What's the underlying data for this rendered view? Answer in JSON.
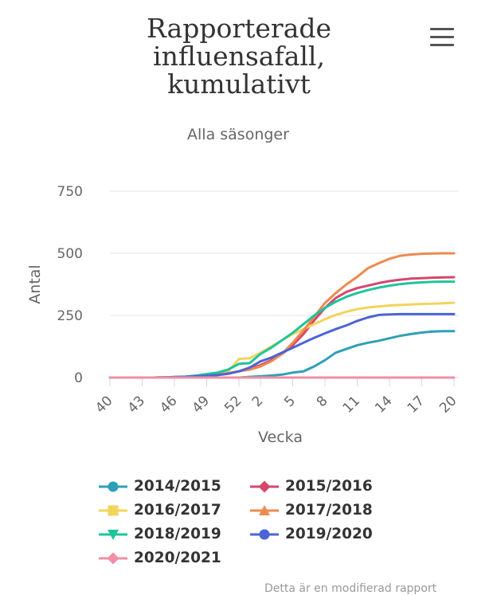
{
  "header": {
    "title_lines": [
      "Rapporterade",
      "influensafall,",
      "kumulativt"
    ],
    "subtitle": "Alla säsonger",
    "menu_icon": "hamburger-menu-icon"
  },
  "chart_data": {
    "type": "line",
    "title": "Rapporterade influensafall, kumulativt",
    "subtitle": "Alla säsonger",
    "xlabel": "Vecka",
    "ylabel": "Antal",
    "ylim": [
      0,
      750
    ],
    "yticks": [
      0,
      250,
      500,
      750
    ],
    "xtick_labels": [
      "40",
      "43",
      "46",
      "49",
      "52",
      "2",
      "5",
      "8",
      "11",
      "14",
      "17",
      "20"
    ],
    "categories": [
      "40",
      "41",
      "42",
      "43",
      "44",
      "45",
      "46",
      "47",
      "48",
      "49",
      "50",
      "51",
      "52",
      "1",
      "2",
      "3",
      "4",
      "5",
      "6",
      "7",
      "8",
      "9",
      "10",
      "11",
      "12",
      "13",
      "14",
      "15",
      "16",
      "17",
      "18",
      "19",
      "20"
    ],
    "grid": true,
    "legend_position": "bottom",
    "series": [
      {
        "name": "2014/2015",
        "color": "#2e9fb8",
        "marker": "circle",
        "values": [
          0,
          0,
          0,
          0,
          0,
          0,
          0,
          0,
          0,
          0,
          0,
          0,
          0,
          3,
          5,
          8,
          12,
          20,
          25,
          45,
          70,
          100,
          115,
          130,
          140,
          148,
          158,
          168,
          175,
          181,
          185,
          187,
          187
        ]
      },
      {
        "name": "2015/2016",
        "color": "#d6476b",
        "marker": "diamond",
        "values": [
          0,
          0,
          0,
          0,
          0,
          1,
          2,
          3,
          5,
          8,
          12,
          18,
          25,
          35,
          50,
          70,
          95,
          130,
          175,
          230,
          280,
          320,
          345,
          360,
          370,
          380,
          388,
          394,
          398,
          400,
          402,
          403,
          404
        ]
      },
      {
        "name": "2016/2017",
        "color": "#f2d45c",
        "marker": "square",
        "values": [
          0,
          0,
          0,
          0,
          0,
          1,
          2,
          3,
          5,
          8,
          12,
          25,
          75,
          78,
          100,
          125,
          150,
          175,
          195,
          215,
          235,
          252,
          265,
          275,
          282,
          286,
          290,
          292,
          294,
          296,
          297,
          299,
          301
        ]
      },
      {
        "name": "2017/2018",
        "color": "#ed8a4f",
        "marker": "triangle-up",
        "values": [
          0,
          0,
          0,
          0,
          0,
          1,
          2,
          3,
          5,
          8,
          12,
          18,
          25,
          32,
          45,
          65,
          95,
          140,
          190,
          245,
          300,
          340,
          375,
          405,
          440,
          460,
          478,
          490,
          495,
          498,
          499,
          500,
          500
        ]
      },
      {
        "name": "2018/2019",
        "color": "#1fc49c",
        "marker": "triangle-down",
        "values": [
          0,
          0,
          0,
          0,
          0,
          1,
          2,
          4,
          8,
          14,
          20,
          32,
          55,
          58,
          95,
          120,
          150,
          180,
          215,
          250,
          280,
          305,
          325,
          340,
          352,
          362,
          370,
          376,
          380,
          383,
          385,
          386,
          386
        ]
      },
      {
        "name": "2019/2020",
        "color": "#4b64d6",
        "marker": "circle",
        "values": [
          0,
          0,
          0,
          0,
          0,
          1,
          2,
          3,
          5,
          7,
          10,
          15,
          25,
          40,
          65,
          80,
          100,
          120,
          140,
          160,
          178,
          195,
          210,
          228,
          242,
          252,
          254,
          255,
          255,
          255,
          255,
          255,
          255
        ]
      },
      {
        "name": "2020/2021",
        "color": "#f08fa5",
        "marker": "diamond",
        "values": [
          0,
          0,
          0,
          0,
          0,
          0,
          0,
          0,
          0,
          0,
          0,
          0,
          0,
          0,
          0,
          0,
          0,
          0,
          0,
          0,
          0,
          0,
          0,
          0,
          0,
          0,
          0,
          0,
          0,
          0,
          0,
          0,
          0
        ]
      }
    ]
  },
  "footer_note": "Detta är en modifierad rapport"
}
